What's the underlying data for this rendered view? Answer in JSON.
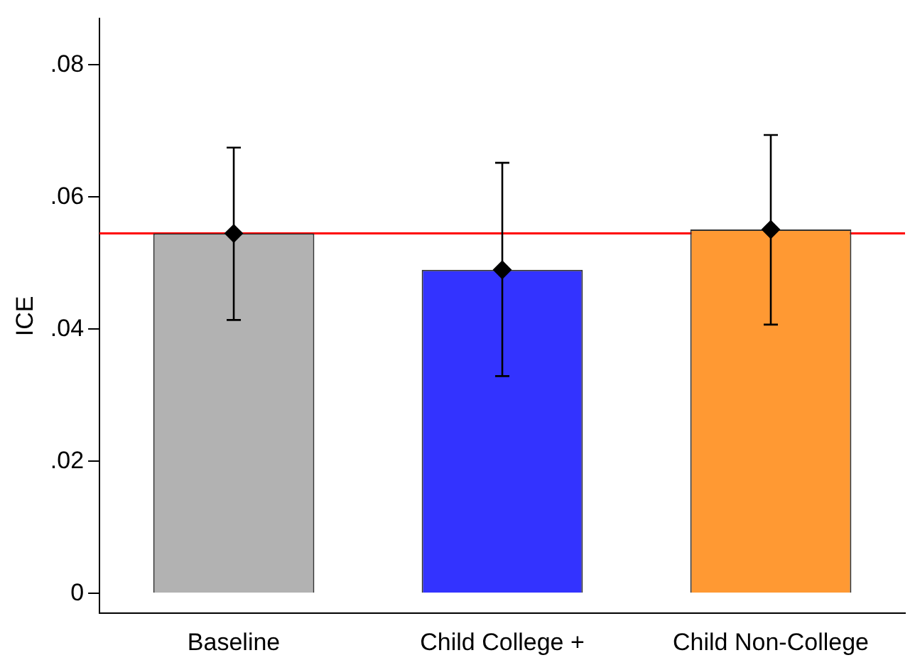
{
  "chart_data": {
    "type": "bar",
    "ylabel": "ICE",
    "categories": [
      "Baseline",
      "Child College +",
      "Child Non-College"
    ],
    "series": [
      {
        "colors": [
          "#b2b2b2",
          "#3333ff",
          "#ff9933"
        ],
        "values": [
          0.0545,
          0.049,
          0.0551
        ]
      },
      {
        "type": "scatter",
        "color": "#000000",
        "marker": "diamond",
        "x": [
          "Baseline",
          "Child College +",
          "Child Non-College"
        ],
        "values": [
          0.0545,
          0.049,
          0.0551
        ],
        "errors": [
          [
            0.0414,
            0.0675
          ],
          [
            0.0329,
            0.0652
          ],
          [
            0.0407,
            0.0694
          ]
        ]
      }
    ],
    "ylim": [
      -0.003,
      0.087
    ],
    "yticks": [
      {
        "value": 0,
        "label": "0"
      },
      {
        "value": 0.02,
        "label": ".02"
      },
      {
        "value": 0.04,
        "label": ".04"
      },
      {
        "value": 0.06,
        "label": ".06"
      },
      {
        "value": 0.08,
        "label": ".08"
      }
    ],
    "grid": false,
    "legend": false,
    "ref_lines": [
      {
        "axis": "y",
        "value": 0.0545,
        "color": "#ff0000"
      }
    ]
  }
}
